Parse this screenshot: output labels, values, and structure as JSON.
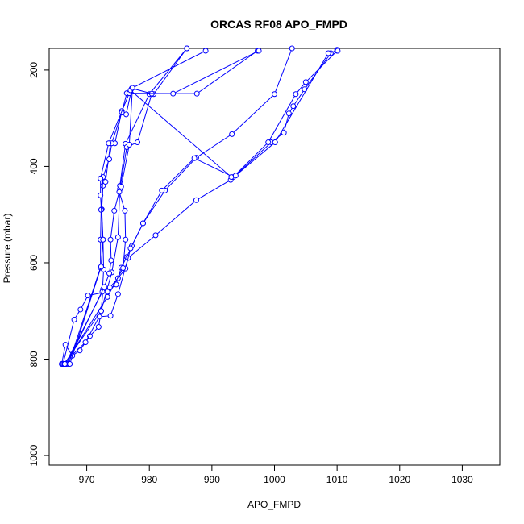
{
  "chart_data": {
    "type": "line",
    "title": "ORCAS RF08 APO_FMPD",
    "xlabel": "APO_FMPD",
    "ylabel": "Pressure (mbar)",
    "xlim": [
      964,
      1036
    ],
    "ylim": [
      1020,
      155
    ],
    "y_reversed": true,
    "x_ticks": [
      970,
      980,
      990,
      1000,
      1010,
      1020,
      1030
    ],
    "y_ticks": [
      200,
      400,
      600,
      800,
      1000
    ],
    "grid": false,
    "legend": "none",
    "marker": "open-circle",
    "color": "#0000ff",
    "series": [
      {
        "points": [
          [
            966.0,
            810
          ],
          [
            966.6,
            770
          ],
          [
            967.7,
            793
          ],
          [
            968.9,
            782
          ],
          [
            970.5,
            752
          ],
          [
            971.9,
            733
          ],
          [
            972.3,
            700
          ],
          [
            974.0,
            620
          ],
          [
            975.0,
            547
          ],
          [
            975.3,
            440
          ],
          [
            976.2,
            353
          ],
          [
            980.0,
            250
          ],
          [
            986.0,
            155
          ]
        ]
      },
      {
        "points": [
          [
            966.2,
            810
          ],
          [
            968.0,
            718
          ],
          [
            969.0,
            697
          ],
          [
            970.2,
            668
          ],
          [
            973.3,
            660
          ],
          [
            974.7,
            645
          ],
          [
            975.5,
            610
          ],
          [
            976.4,
            588
          ],
          [
            977.2,
            565
          ],
          [
            979.0,
            518
          ],
          [
            982.5,
            450
          ],
          [
            987.5,
            382
          ],
          [
            993.2,
            333
          ],
          [
            1000.0,
            250
          ],
          [
            1002.8,
            155
          ]
        ]
      },
      {
        "points": [
          [
            966.2,
            810
          ],
          [
            969.8,
            765
          ],
          [
            972.0,
            712
          ],
          [
            973.8,
            710
          ],
          [
            975.0,
            665
          ],
          [
            976.6,
            590
          ],
          [
            981.0,
            543
          ],
          [
            987.5,
            470
          ],
          [
            993.0,
            428
          ],
          [
            999.5,
            350
          ],
          [
            1001.5,
            330
          ],
          [
            1002.3,
            290
          ],
          [
            1003.0,
            275
          ],
          [
            1004.8,
            240
          ],
          [
            1009.0,
            165
          ],
          [
            1010.0,
            158
          ]
        ]
      },
      {
        "points": [
          [
            966.4,
            810
          ],
          [
            972.3,
            700
          ],
          [
            972.6,
            655
          ],
          [
            973.7,
            651
          ],
          [
            975.0,
            632
          ],
          [
            976.2,
            612
          ],
          [
            977.0,
            570
          ],
          [
            979.0,
            518
          ],
          [
            982.0,
            450
          ],
          [
            987.2,
            383
          ],
          [
            993.4,
            422
          ],
          [
            999.0,
            350
          ],
          [
            1003.4,
            250
          ],
          [
            1005.0,
            225
          ],
          [
            1010.0,
            160
          ]
        ]
      },
      {
        "points": [
          [
            966.6,
            810
          ],
          [
            972.5,
            660
          ],
          [
            972.7,
            614
          ],
          [
            972.6,
            552
          ],
          [
            972.4,
            489
          ],
          [
            972.6,
            440
          ],
          [
            973.0,
            432
          ],
          [
            973.8,
            352
          ],
          [
            974.5,
            352
          ],
          [
            975.6,
            285
          ],
          [
            976.3,
            292
          ],
          [
            977.2,
            238
          ],
          [
            980.7,
            250
          ],
          [
            986.0,
            155
          ]
        ]
      },
      {
        "points": [
          [
            966.8,
            810
          ],
          [
            972.8,
            650
          ],
          [
            973.6,
            622
          ],
          [
            973.9,
            595
          ],
          [
            973.8,
            552
          ],
          [
            974.4,
            492
          ],
          [
            975.3,
            447
          ],
          [
            976.4,
            360
          ],
          [
            978.1,
            350
          ],
          [
            980.4,
            249
          ],
          [
            987.6,
            249
          ],
          [
            997.3,
            160
          ]
        ]
      },
      {
        "points": [
          [
            967.1,
            810
          ],
          [
            972.2,
            610
          ],
          [
            972.2,
            552
          ],
          [
            972.3,
            490
          ],
          [
            972.6,
            422
          ],
          [
            973.6,
            385
          ],
          [
            974.0,
            352
          ],
          [
            975.6,
            288
          ],
          [
            976.4,
            248
          ],
          [
            983.8,
            249
          ],
          [
            997.5,
            160
          ]
        ]
      },
      {
        "points": [
          [
            967.3,
            810
          ],
          [
            972.3,
            608
          ],
          [
            972.6,
            552
          ],
          [
            972.2,
            460
          ],
          [
            972.2,
            425
          ],
          [
            973.5,
            352
          ],
          [
            976.8,
            248
          ],
          [
            977.0,
            242
          ],
          [
            993.1,
            422
          ],
          [
            993.8,
            419
          ],
          [
            1000.1,
            350
          ],
          [
            1008.6,
            165
          ],
          [
            1010.1,
            160
          ]
        ]
      },
      {
        "points": [
          [
            966.5,
            810
          ],
          [
            973.3,
            671
          ],
          [
            975.8,
            611
          ],
          [
            976.2,
            552
          ],
          [
            976.1,
            492
          ],
          [
            975.2,
            453
          ],
          [
            975.5,
            442
          ],
          [
            976.8,
            355
          ],
          [
            977.3,
            237
          ],
          [
            989.0,
            160
          ]
        ]
      }
    ]
  }
}
